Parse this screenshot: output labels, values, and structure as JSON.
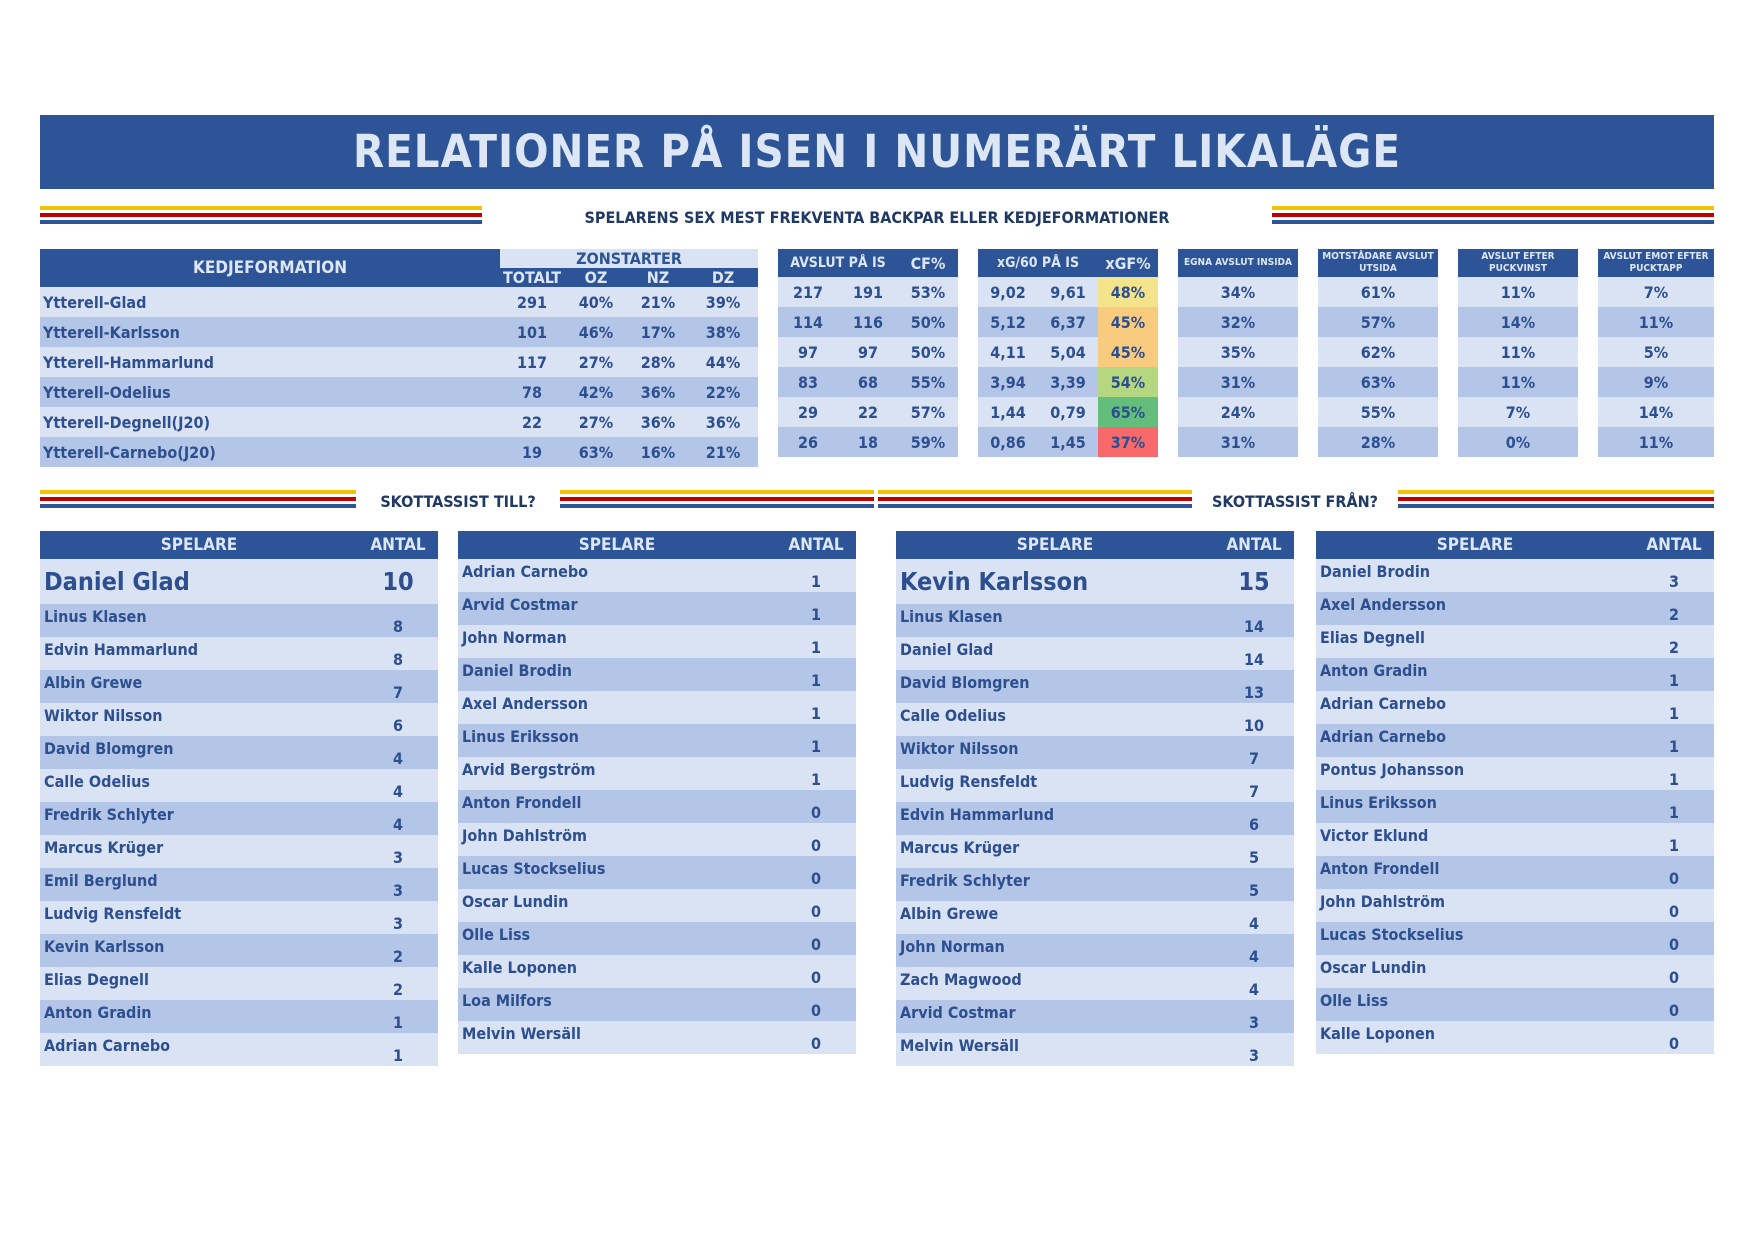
{
  "title": "RELATIONER PÅ ISEN I NUMERÄRT LIKALÄGE",
  "subtitle": "SPELARENS SEX MEST FREKVENTA BACKPAR ELLER KEDJEFORMATIONER",
  "section_assist_to": "SKOTTASSIST TILL?",
  "section_assist_from": "SKOTTASSIST FRÅN?",
  "colors": {
    "header_bg": "#2d5496",
    "row_light": "#dae3f3",
    "row_dark": "#b4c6e7",
    "stripe_yellow": "#f2c300",
    "stripe_red": "#c00000"
  },
  "formations": {
    "headers": {
      "kedjeformation": "KEDJEFORMATION",
      "zonstarter": "ZONSTARTER",
      "totalt": "TOTALT",
      "oz": "OZ",
      "nz": "NZ",
      "dz": "DZ",
      "avslut_pa_is": "AVSLUT PÅ IS",
      "cf_pct": "CF%",
      "xg60_pa_is": "xG/60 PÅ IS",
      "xgf_pct": "xGF%",
      "egna_avslut": "EGNA AVSLUT INSIDA",
      "motstandare_avslut": "MOTSTÅDARE AVSLUT UTSIDA",
      "avslut_efter_puckvinst": "AVSLUT EFTER PUCKVINST",
      "avslut_emot_efter_pucktapp": "AVSLUT EMOT EFTER PUCKTAPP"
    },
    "rows": [
      {
        "name": "Ytterell-Glad",
        "totalt": "291",
        "oz": "40%",
        "nz": "21%",
        "dz": "39%",
        "af": "217",
        "aa": "191",
        "cf": "53%",
        "xgf60": "9,02",
        "xga60": "9,61",
        "xgf": "48%",
        "xgf_color": "#f3e38a",
        "egna": "34%",
        "mot": "61%",
        "puckvinst": "11%",
        "pucktapp": "7%"
      },
      {
        "name": "Ytterell-Karlsson",
        "totalt": "101",
        "oz": "46%",
        "nz": "17%",
        "dz": "38%",
        "af": "114",
        "aa": "116",
        "cf": "50%",
        "xgf60": "5,12",
        "xga60": "6,37",
        "xgf": "45%",
        "xgf_color": "#f8cb7f",
        "egna": "32%",
        "mot": "57%",
        "puckvinst": "14%",
        "pucktapp": "11%"
      },
      {
        "name": "Ytterell-Hammarlund",
        "totalt": "117",
        "oz": "27%",
        "nz": "28%",
        "dz": "44%",
        "af": "97",
        "aa": "97",
        "cf": "50%",
        "xgf60": "4,11",
        "xga60": "5,04",
        "xgf": "45%",
        "xgf_color": "#f8cb7f",
        "egna": "35%",
        "mot": "62%",
        "puckvinst": "11%",
        "pucktapp": "5%"
      },
      {
        "name": "Ytterell-Odelius",
        "totalt": "78",
        "oz": "42%",
        "nz": "36%",
        "dz": "22%",
        "af": "83",
        "aa": "68",
        "cf": "55%",
        "xgf60": "3,94",
        "xga60": "3,39",
        "xgf": "54%",
        "xgf_color": "#b5d77f",
        "egna": "31%",
        "mot": "63%",
        "puckvinst": "11%",
        "pucktapp": "9%"
      },
      {
        "name": "Ytterell-Degnell(J20)",
        "totalt": "22",
        "oz": "27%",
        "nz": "36%",
        "dz": "36%",
        "af": "29",
        "aa": "22",
        "cf": "57%",
        "xgf60": "1,44",
        "xga60": "0,79",
        "xgf": "65%",
        "xgf_color": "#63be7b",
        "egna": "24%",
        "mot": "55%",
        "puckvinst": "7%",
        "pucktapp": "14%"
      },
      {
        "name": "Ytterell-Carnebo(J20)",
        "totalt": "19",
        "oz": "63%",
        "nz": "16%",
        "dz": "21%",
        "af": "26",
        "aa": "18",
        "cf": "59%",
        "xgf60": "0,86",
        "xga60": "1,45",
        "xgf": "37%",
        "xgf_color": "#f8696b",
        "egna": "31%",
        "mot": "28%",
        "puckvinst": "0%",
        "pucktapp": "11%"
      }
    ]
  },
  "lists": {
    "col_player": "SPELARE",
    "col_count": "ANTAL",
    "assist_to_a": [
      {
        "name": "Daniel Glad",
        "count": "10"
      },
      {
        "name": "Linus Klasen",
        "count": "8"
      },
      {
        "name": "Edvin Hammarlund",
        "count": "8"
      },
      {
        "name": "Albin Grewe",
        "count": "7"
      },
      {
        "name": "Wiktor Nilsson",
        "count": "6"
      },
      {
        "name": "David Blomgren",
        "count": "4"
      },
      {
        "name": "Calle Odelius",
        "count": "4"
      },
      {
        "name": "Fredrik Schlyter",
        "count": "4"
      },
      {
        "name": "Marcus Krüger",
        "count": "3"
      },
      {
        "name": "Emil Berglund",
        "count": "3"
      },
      {
        "name": "Ludvig Rensfeldt",
        "count": "3"
      },
      {
        "name": "Kevin Karlsson",
        "count": "2"
      },
      {
        "name": "Elias Degnell",
        "count": "2"
      },
      {
        "name": "Anton Gradin",
        "count": "1"
      },
      {
        "name": "Adrian Carnebo",
        "count": "1"
      }
    ],
    "assist_to_b": [
      {
        "name": "Adrian Carnebo",
        "count": "1"
      },
      {
        "name": "Arvid Costmar",
        "count": "1"
      },
      {
        "name": "John Norman",
        "count": "1"
      },
      {
        "name": "Daniel Brodin",
        "count": "1"
      },
      {
        "name": "Axel Andersson",
        "count": "1"
      },
      {
        "name": "Linus Eriksson",
        "count": "1"
      },
      {
        "name": "Arvid Bergström",
        "count": "1"
      },
      {
        "name": "Anton Frondell",
        "count": "0"
      },
      {
        "name": "John Dahlström",
        "count": "0"
      },
      {
        "name": "Lucas Stockselius",
        "count": "0"
      },
      {
        "name": "Oscar Lundin",
        "count": "0"
      },
      {
        "name": "Olle Liss",
        "count": "0"
      },
      {
        "name": "Kalle Loponen",
        "count": "0"
      },
      {
        "name": "Loa Milfors",
        "count": "0"
      },
      {
        "name": "Melvin Wersäll",
        "count": "0"
      }
    ],
    "assist_from_a": [
      {
        "name": "Kevin Karlsson",
        "count": "15"
      },
      {
        "name": "Linus Klasen",
        "count": "14"
      },
      {
        "name": "Daniel Glad",
        "count": "14"
      },
      {
        "name": "David Blomgren",
        "count": "13"
      },
      {
        "name": "Calle Odelius",
        "count": "10"
      },
      {
        "name": "Wiktor Nilsson",
        "count": "7"
      },
      {
        "name": "Ludvig Rensfeldt",
        "count": "7"
      },
      {
        "name": "Edvin Hammarlund",
        "count": "6"
      },
      {
        "name": "Marcus Krüger",
        "count": "5"
      },
      {
        "name": "Fredrik Schlyter",
        "count": "5"
      },
      {
        "name": "Albin Grewe",
        "count": "4"
      },
      {
        "name": "John Norman",
        "count": "4"
      },
      {
        "name": "Zach Magwood",
        "count": "4"
      },
      {
        "name": "Arvid Costmar",
        "count": "3"
      },
      {
        "name": "Melvin Wersäll",
        "count": "3"
      }
    ],
    "assist_from_b": [
      {
        "name": "Daniel Brodin",
        "count": "3"
      },
      {
        "name": "Axel Andersson",
        "count": "2"
      },
      {
        "name": "Elias Degnell",
        "count": "2"
      },
      {
        "name": "Anton Gradin",
        "count": "1"
      },
      {
        "name": "Adrian Carnebo",
        "count": "1"
      },
      {
        "name": "Adrian Carnebo",
        "count": "1"
      },
      {
        "name": "Pontus Johansson",
        "count": "1"
      },
      {
        "name": "Linus Eriksson",
        "count": "1"
      },
      {
        "name": "Victor Eklund",
        "count": "1"
      },
      {
        "name": "Anton Frondell",
        "count": "0"
      },
      {
        "name": "John Dahlström",
        "count": "0"
      },
      {
        "name": "Lucas Stockselius",
        "count": "0"
      },
      {
        "name": "Oscar Lundin",
        "count": "0"
      },
      {
        "name": "Olle Liss",
        "count": "0"
      },
      {
        "name": "Kalle Loponen",
        "count": "0"
      }
    ]
  }
}
